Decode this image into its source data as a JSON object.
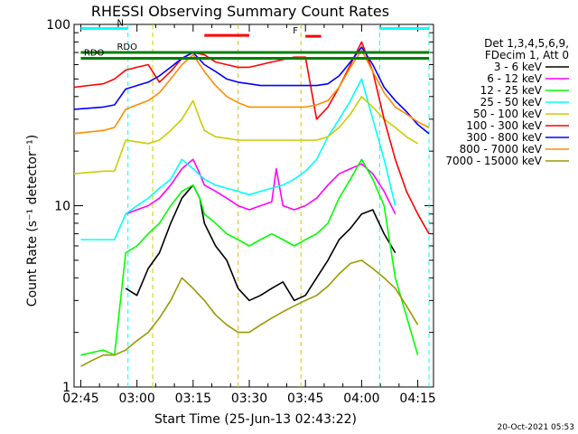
{
  "chart_data": {
    "type": "line",
    "title": "RHESSI Observing Summary Count Rates",
    "xlabel": "Start Time (25-Jun-13 02:43:22)",
    "ylabel": "Count Rate (s⁻¹ detector⁻¹)",
    "ylog": true,
    "ylim": [
      1,
      100
    ],
    "xlim": [
      2.72,
      4.32
    ],
    "x_ticks": [
      {
        "value": 2.75,
        "label": "02:45"
      },
      {
        "value": 3.0,
        "label": "03:00"
      },
      {
        "value": 3.25,
        "label": "03:15"
      },
      {
        "value": 3.5,
        "label": "03:30"
      },
      {
        "value": 3.75,
        "label": "03:45"
      },
      {
        "value": 4.0,
        "label": "04:00"
      },
      {
        "value": 4.25,
        "label": "04:15"
      }
    ],
    "y_ticks": [
      {
        "value": 1,
        "label": "1"
      },
      {
        "value": 10,
        "label": "10"
      },
      {
        "value": 100,
        "label": "100"
      }
    ],
    "legend_header": [
      "Det 1,3,4,5,6,9,",
      "FDecim 1, Att 0"
    ],
    "legend_placement": "right",
    "series": [
      {
        "name": "3 - 6 keV",
        "color": "#000000",
        "x": [
          2.95,
          3.0,
          3.05,
          3.1,
          3.15,
          3.2,
          3.25,
          3.28,
          3.3,
          3.35,
          3.4,
          3.45,
          3.5,
          3.55,
          3.6,
          3.65,
          3.7,
          3.75,
          3.8,
          3.85,
          3.9,
          3.95,
          4.0,
          4.05,
          4.1,
          4.15
        ],
        "y": [
          3.5,
          3.2,
          4.5,
          5.5,
          8.0,
          11.0,
          13.0,
          11.0,
          8.0,
          6.0,
          5.0,
          3.5,
          3.0,
          3.2,
          3.5,
          3.8,
          3.0,
          3.2,
          4.0,
          5.0,
          6.5,
          7.5,
          9.0,
          9.5,
          7.0,
          5.5
        ]
      },
      {
        "name": "6 - 12 keV",
        "color": "#ff00ff",
        "x": [
          2.95,
          3.0,
          3.05,
          3.1,
          3.15,
          3.2,
          3.25,
          3.28,
          3.3,
          3.35,
          3.4,
          3.45,
          3.5,
          3.55,
          3.6,
          3.62,
          3.65,
          3.7,
          3.75,
          3.8,
          3.85,
          3.9,
          3.95,
          4.0,
          4.05,
          4.1,
          4.15
        ],
        "y": [
          9.0,
          9.5,
          10.0,
          11.0,
          13.0,
          16.0,
          18.0,
          15.0,
          13.0,
          12.0,
          11.0,
          10.0,
          9.5,
          10.0,
          10.5,
          16.0,
          10.0,
          9.5,
          10.0,
          11.0,
          13.0,
          15.0,
          16.0,
          17.0,
          15.0,
          12.0,
          9.0
        ]
      },
      {
        "name": "12 - 25 keV",
        "color": "#00ff00",
        "x": [
          2.75,
          2.85,
          2.9,
          2.95,
          3.0,
          3.05,
          3.1,
          3.15,
          3.2,
          3.25,
          3.28,
          3.3,
          3.35,
          3.4,
          3.45,
          3.5,
          3.55,
          3.6,
          3.65,
          3.7,
          3.75,
          3.8,
          3.85,
          3.9,
          3.95,
          4.0,
          4.05,
          4.1,
          4.15,
          4.25
        ],
        "y": [
          1.5,
          1.6,
          1.5,
          5.5,
          6.0,
          7.0,
          8.0,
          10.0,
          12.0,
          13.0,
          11.0,
          9.0,
          8.0,
          7.0,
          6.5,
          6.0,
          6.5,
          7.0,
          6.5,
          6.0,
          6.5,
          7.0,
          8.0,
          11.0,
          14.0,
          18.0,
          14.0,
          10.0,
          4.0,
          1.5
        ]
      },
      {
        "name": "25 - 50 keV",
        "color": "#00ffff",
        "x": [
          2.75,
          2.8,
          2.85,
          2.9,
          2.95,
          3.0,
          3.05,
          3.1,
          3.15,
          3.2,
          3.25,
          3.3,
          3.35,
          3.4,
          3.45,
          3.5,
          3.55,
          3.6,
          3.65,
          3.7,
          3.75,
          3.8,
          3.85,
          3.9,
          3.95,
          4.0,
          4.05,
          4.1,
          4.15
        ],
        "y": [
          6.5,
          6.5,
          6.5,
          6.5,
          9.0,
          10.0,
          11.0,
          12.5,
          14.0,
          18.0,
          16.0,
          14.0,
          13.0,
          12.5,
          12.0,
          11.5,
          12.0,
          12.5,
          13.0,
          14.0,
          15.5,
          18.0,
          24.0,
          30.0,
          38.0,
          50.0,
          30.0,
          18.0,
          10.0
        ]
      },
      {
        "name": "50 - 100 keV",
        "color": "#cccc00",
        "x": [
          2.72,
          2.85,
          2.9,
          2.95,
          3.0,
          3.05,
          3.1,
          3.15,
          3.2,
          3.25,
          3.28,
          3.3,
          3.35,
          3.4,
          3.45,
          3.5,
          3.55,
          3.6,
          3.65,
          3.7,
          3.75,
          3.8,
          3.85,
          3.9,
          3.95,
          4.0,
          4.05,
          4.1,
          4.15,
          4.2,
          4.25
        ],
        "y": [
          15.0,
          15.5,
          15.5,
          23.0,
          22.5,
          22.0,
          23.0,
          26.0,
          30.0,
          38.0,
          30.0,
          26.0,
          24.0,
          23.5,
          23.0,
          23.0,
          23.0,
          23.0,
          23.0,
          23.0,
          23.0,
          23.0,
          24.0,
          27.0,
          32.0,
          40.0,
          35.0,
          30.0,
          27.0,
          24.0,
          22.0
        ]
      },
      {
        "name": "100 - 300 keV",
        "color": "#ff0000",
        "x": [
          2.72,
          2.85,
          2.9,
          2.95,
          3.0,
          3.05,
          3.1,
          3.15,
          3.2,
          3.25,
          3.3,
          3.35,
          3.4,
          3.45,
          3.5,
          3.55,
          3.6,
          3.65,
          3.7,
          3.75,
          3.8,
          3.85,
          3.9,
          3.95,
          4.0,
          4.05,
          4.1,
          4.15,
          4.2,
          4.25,
          4.3
        ],
        "y": [
          45.0,
          47.0,
          50.0,
          56.0,
          58.0,
          60.0,
          48.0,
          55.0,
          65.0,
          70.0,
          68.0,
          62.0,
          60.0,
          58.0,
          58.0,
          60.0,
          62.0,
          64.0,
          66.0,
          66.0,
          30.0,
          35.0,
          45.0,
          60.0,
          80.0,
          55.0,
          30.0,
          18.0,
          12.0,
          9.0,
          7.0
        ]
      },
      {
        "name": "300 - 800 keV",
        "color": "#0000ff",
        "x": [
          2.72,
          2.85,
          2.9,
          2.95,
          3.0,
          3.05,
          3.1,
          3.15,
          3.2,
          3.25,
          3.3,
          3.35,
          3.4,
          3.45,
          3.5,
          3.55,
          3.6,
          3.65,
          3.7,
          3.75,
          3.8,
          3.85,
          3.9,
          3.95,
          4.0,
          4.05,
          4.1,
          4.15,
          4.2,
          4.25,
          4.3
        ],
        "y": [
          34.0,
          35.0,
          36.0,
          44.0,
          46.0,
          48.0,
          52.0,
          58.0,
          65.0,
          70.0,
          60.0,
          55.0,
          50.0,
          48.0,
          47.0,
          46.0,
          46.0,
          46.0,
          46.0,
          46.0,
          46.0,
          47.0,
          52.0,
          62.0,
          75.0,
          60.0,
          45.0,
          38.0,
          33.0,
          28.0,
          25.0
        ]
      },
      {
        "name": "800 - 7000 keV",
        "color": "#ff8c00",
        "x": [
          2.72,
          2.85,
          2.9,
          2.95,
          3.0,
          3.05,
          3.1,
          3.15,
          3.2,
          3.25,
          3.3,
          3.35,
          3.4,
          3.45,
          3.5,
          3.55,
          3.6,
          3.65,
          3.7,
          3.75,
          3.8,
          3.85,
          3.9,
          3.95,
          4.0,
          4.05,
          4.1,
          4.15,
          4.2,
          4.25,
          4.3
        ],
        "y": [
          25.0,
          26.0,
          27.0,
          34.0,
          36.0,
          38.0,
          42.0,
          50.0,
          60.0,
          68.0,
          55.0,
          46.0,
          40.0,
          37.0,
          35.0,
          35.0,
          35.0,
          35.0,
          35.0,
          35.0,
          36.0,
          38.0,
          45.0,
          58.0,
          72.0,
          55.0,
          42.0,
          35.0,
          32.0,
          29.0,
          27.0
        ]
      },
      {
        "name": "7000 - 15000 keV",
        "color": "#999900",
        "x": [
          2.75,
          2.8,
          2.85,
          2.9,
          2.95,
          3.0,
          3.05,
          3.1,
          3.15,
          3.2,
          3.25,
          3.3,
          3.35,
          3.4,
          3.45,
          3.5,
          3.55,
          3.6,
          3.65,
          3.7,
          3.75,
          3.8,
          3.85,
          3.9,
          3.95,
          4.0,
          4.05,
          4.1,
          4.15,
          4.2,
          4.25
        ],
        "y": [
          1.3,
          1.4,
          1.5,
          1.5,
          1.6,
          1.8,
          2.0,
          2.4,
          3.0,
          4.0,
          3.5,
          3.0,
          2.5,
          2.2,
          2.0,
          2.0,
          2.2,
          2.4,
          2.6,
          2.8,
          3.0,
          3.2,
          3.6,
          4.2,
          4.8,
          5.0,
          4.5,
          4.0,
          3.5,
          2.8,
          2.2
        ]
      }
    ],
    "flags": [
      {
        "label": "N",
        "color": "#00ffff",
        "x_start": 2.75,
        "x_end": 2.96,
        "y": 95
      },
      {
        "label": "",
        "color": "#00ffff",
        "x_start": 4.08,
        "x_end": 4.3,
        "y": 95
      },
      {
        "label": "F",
        "color": "#ff0000",
        "x_start": 3.75,
        "x_end": 3.82,
        "y": 86
      },
      {
        "label": "",
        "color": "#ff0000",
        "x_start": 3.3,
        "x_end": 3.5,
        "y": 87
      },
      {
        "label": "RDO",
        "color": "#008000",
        "x_start": 2.75,
        "x_end": 4.3,
        "y": 70
      },
      {
        "label": "RDO",
        "color": "#008000",
        "x_start": 2.82,
        "x_end": 2.85,
        "y": 65
      },
      {
        "label": "",
        "color": "#008000",
        "x_start": 2.75,
        "x_end": 4.3,
        "y": 65
      }
    ],
    "vlines": [
      {
        "x": 2.96,
        "color": "#00ffff"
      },
      {
        "x": 3.07,
        "color": "#cccc00"
      },
      {
        "x": 3.45,
        "color": "#cccc00"
      },
      {
        "x": 3.73,
        "color": "#cccc00"
      },
      {
        "x": 4.08,
        "color": "#00ffff"
      },
      {
        "x": 4.3,
        "color": "#00ffff"
      }
    ]
  },
  "footer": {
    "timestamp": "20-Oct-2021 05:53"
  }
}
